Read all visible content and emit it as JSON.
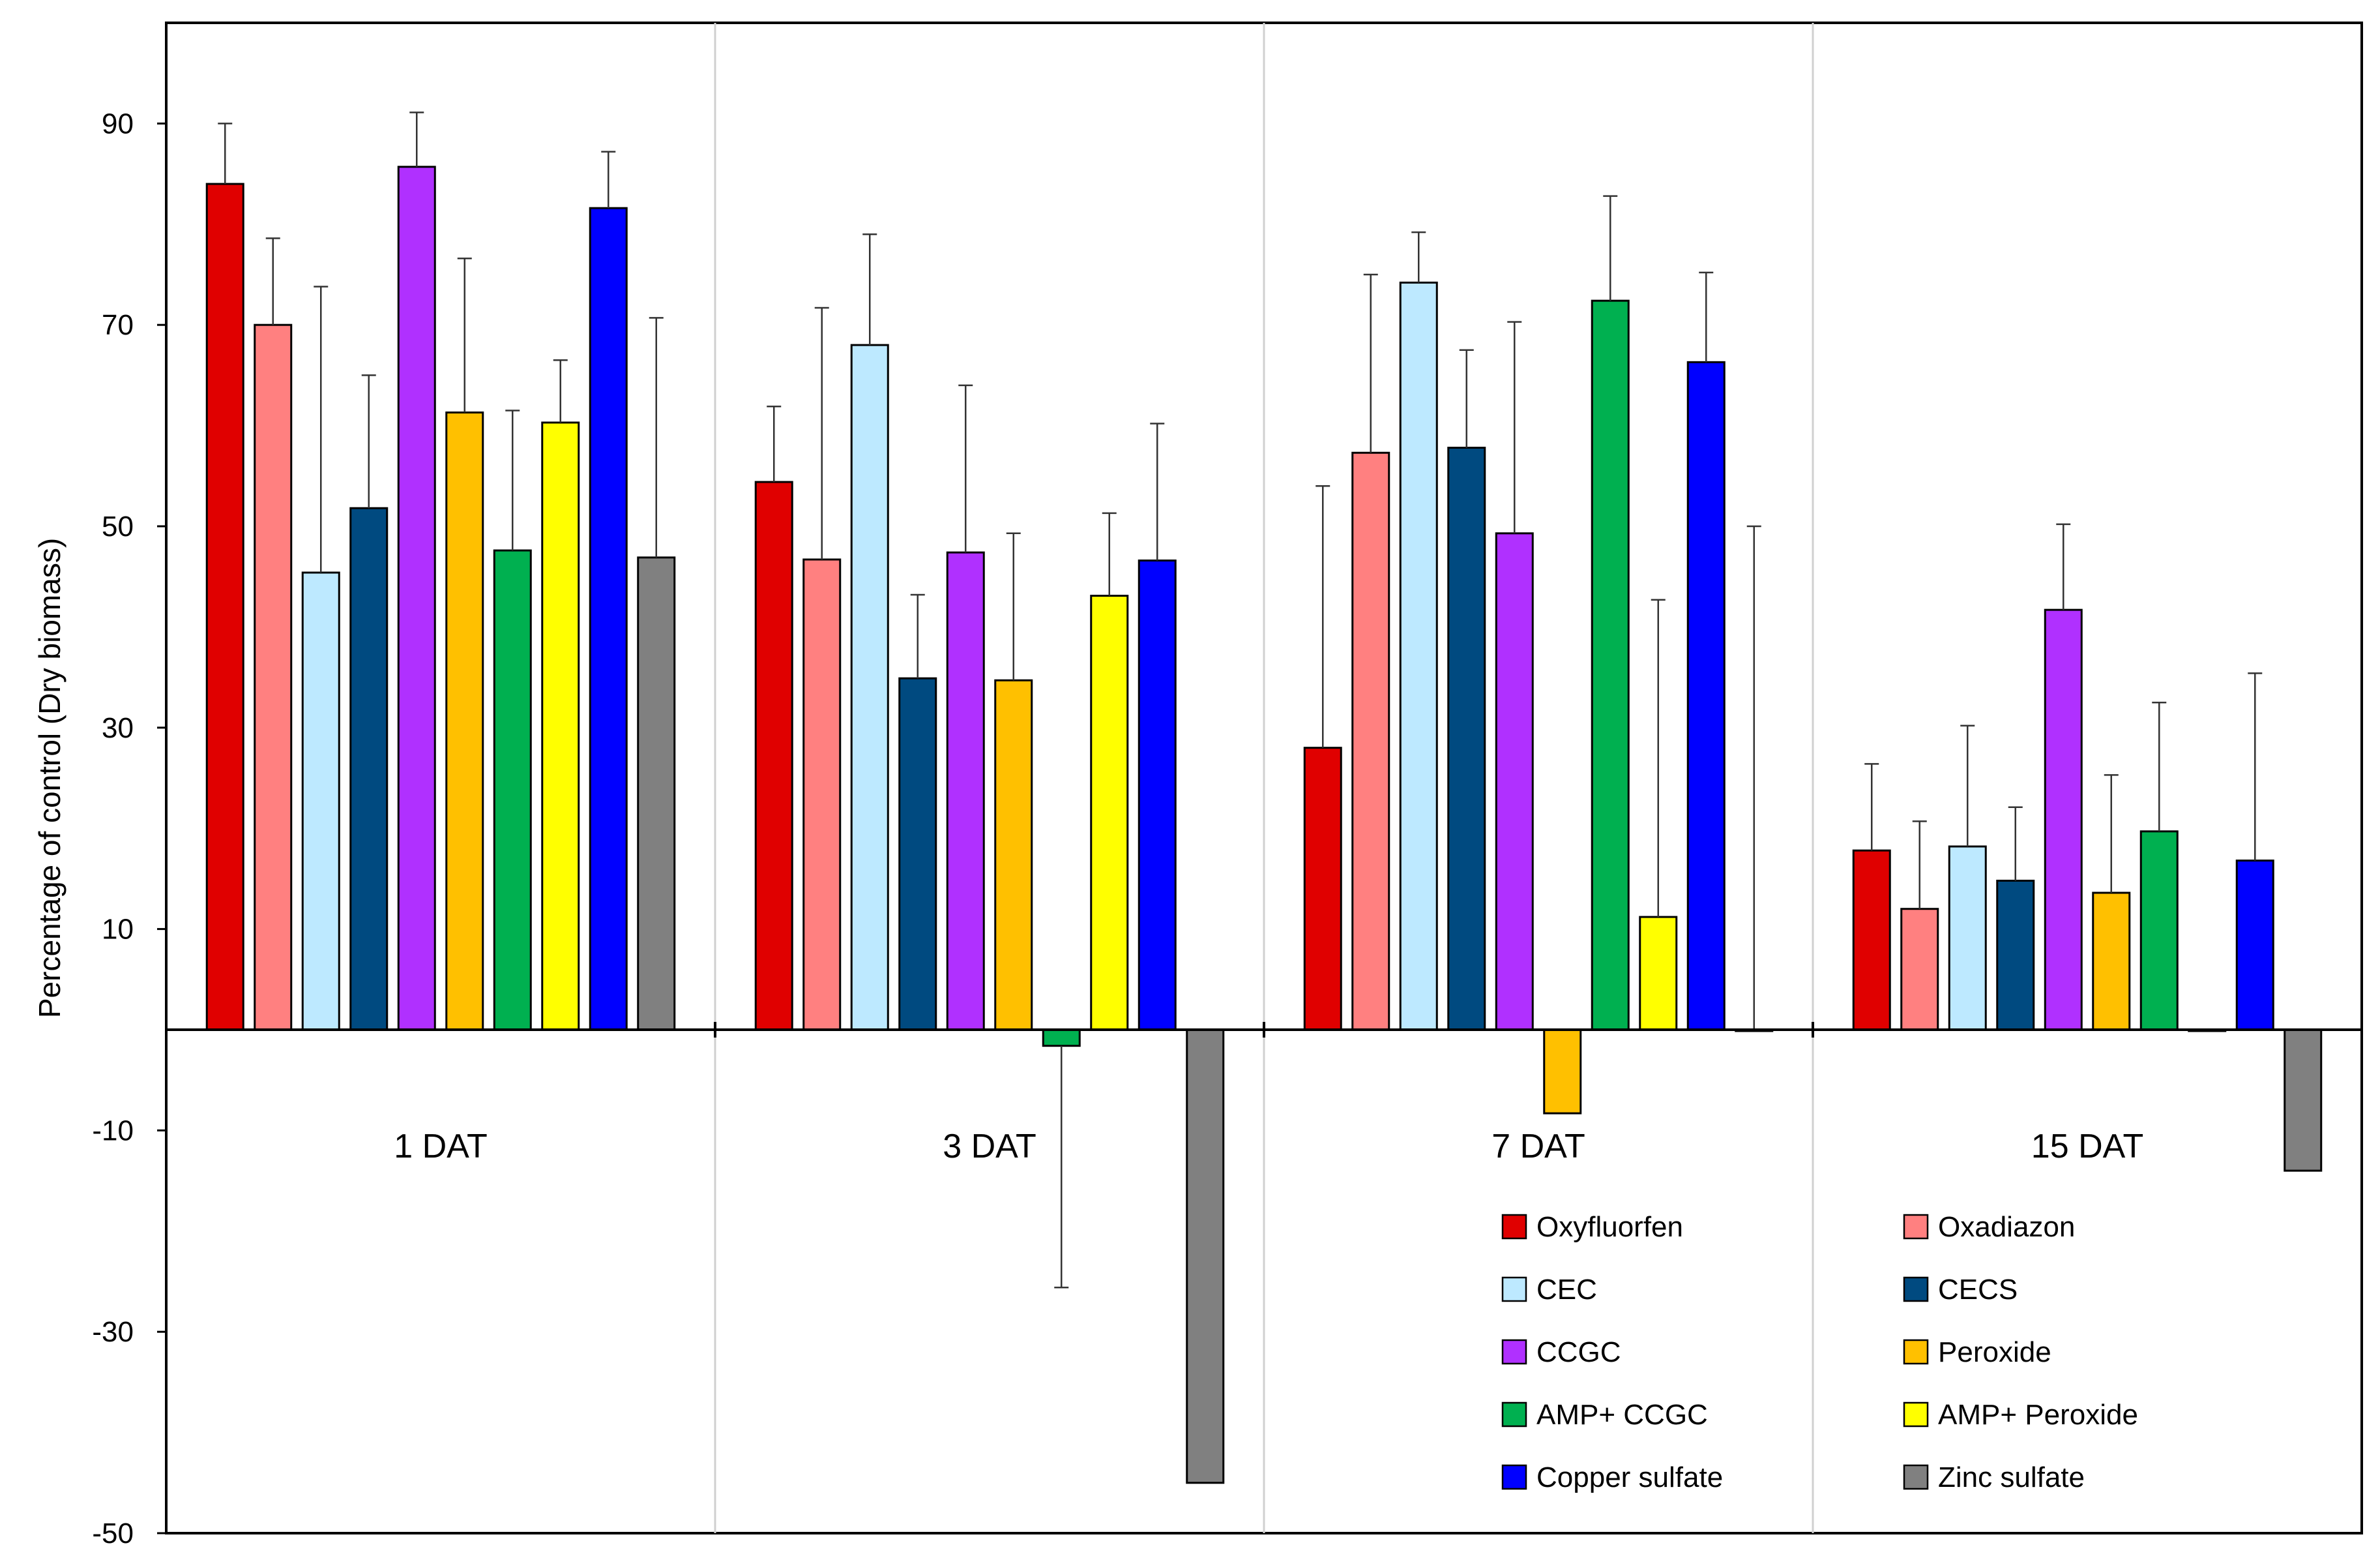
{
  "chart_data": {
    "type": "bar",
    "title": "",
    "xlabel": "",
    "ylabel": "Percentage of control (Dry biomass)",
    "ylim": [
      -50,
      100
    ],
    "yticks": [
      90,
      70,
      50,
      30,
      10,
      -10,
      -30,
      -50
    ],
    "ytick_labels": [
      "90",
      "70",
      "50",
      "30",
      "10",
      "-10",
      "-30",
      "-50"
    ],
    "categories": [
      "1 DAT",
      "3 DAT",
      "7 DAT",
      "15 DAT"
    ],
    "grid": false,
    "legend_position": "bottom-right",
    "series": [
      {
        "name": "Oxyfluorfen",
        "color": "#E00000",
        "values": [
          84.0,
          54.4,
          28.0,
          17.8
        ],
        "errors": [
          6.0,
          7.5,
          26.0,
          8.6
        ]
      },
      {
        "name": "Oxadiazon",
        "color": "#FF8080",
        "values": [
          70.0,
          46.7,
          57.3,
          12.0
        ],
        "errors": [
          8.6,
          25.0,
          17.7,
          8.7
        ]
      },
      {
        "name": "CEC",
        "color": "#BDE9FF",
        "values": [
          45.4,
          68.0,
          74.2,
          18.2
        ],
        "errors": [
          28.4,
          11.0,
          5.0,
          12.0
        ]
      },
      {
        "name": "CECS",
        "color": "#004A80",
        "values": [
          51.8,
          34.9,
          57.8,
          14.8
        ],
        "errors": [
          13.2,
          8.3,
          9.7,
          7.3
        ]
      },
      {
        "name": "CCGC",
        "color": "#B030FF",
        "values": [
          85.7,
          47.4,
          49.3,
          41.7
        ],
        "errors": [
          5.4,
          16.6,
          21.0,
          8.5
        ]
      },
      {
        "name": "Peroxide",
        "color": "#FFC000",
        "values": [
          61.3,
          34.7,
          -8.3,
          13.6
        ],
        "errors": [
          15.3,
          14.6,
          0.0,
          11.7
        ]
      },
      {
        "name": "AMP+ CCGC",
        "color": "#00B050",
        "values": [
          47.6,
          -1.6,
          72.4,
          19.7
        ],
        "errors": [
          13.9,
          24.0,
          10.4,
          12.8
        ]
      },
      {
        "name": "AMP+  Peroxide",
        "color": "#FFFF00",
        "values": [
          60.3,
          43.1,
          11.2,
          0.0
        ],
        "errors": [
          6.2,
          8.2,
          31.5,
          0.0
        ]
      },
      {
        "name": "Copper sulfate",
        "color": "#0000FF",
        "values": [
          81.6,
          46.6,
          66.3,
          16.8
        ],
        "errors": [
          5.6,
          13.6,
          8.9,
          18.6
        ]
      },
      {
        "name": "Zinc sulfate",
        "color": "#808080",
        "values": [
          46.9,
          -45.0,
          0.0,
          -14.0
        ],
        "errors": [
          23.8,
          0.0,
          50.0,
          0.0
        ]
      }
    ]
  }
}
